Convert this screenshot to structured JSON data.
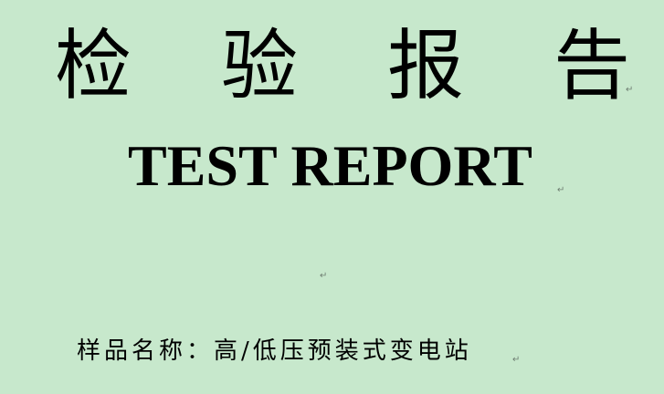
{
  "report": {
    "title_cn_chars": [
      "检",
      "验",
      "报",
      "告"
    ],
    "title_en": "TEST REPORT",
    "sample_label": "样品名称：",
    "sample_value": "高/低压预装式变电站",
    "paragraph_mark": "↵"
  }
}
